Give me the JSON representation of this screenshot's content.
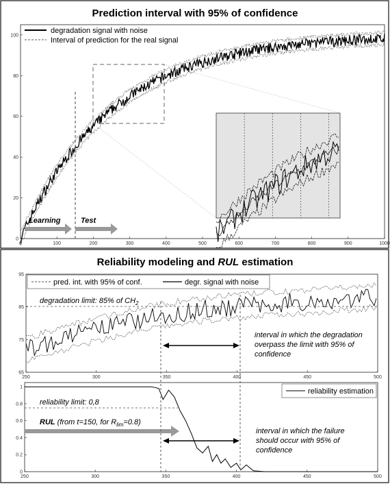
{
  "chart_data": [
    {
      "type": "line",
      "title": "Prediction interval with 95% of confidence",
      "xlim": [
        0,
        1000
      ],
      "ylim": [
        0,
        105
      ],
      "x_ticks": [
        "0",
        "100",
        "200",
        "300",
        "400",
        "500",
        "600",
        "700",
        "800",
        "900",
        "1000"
      ],
      "y_ticks": [
        "0",
        "20",
        "40",
        "60",
        "80",
        "100"
      ],
      "legend": [
        "degradation signal with noise",
        "Interval of prediction for the real signal"
      ],
      "legend_placement": "top-left",
      "series": [
        {
          "name": "degradation signal with noise",
          "model": "100*(1-exp(-t/250))",
          "noise_amplitude": 2
        },
        {
          "name": "Interval of prediction for the real signal",
          "offset": 3
        }
      ],
      "split_x": 150,
      "annotations": [
        "Learning",
        "Test"
      ],
      "zoom_box": {
        "x": [
          200,
          400
        ],
        "y": [
          60,
          90
        ]
      }
    },
    {
      "type": "line",
      "title_parts": [
        "Reliability modeling and ",
        "RUL",
        " estimation"
      ],
      "xlim": [
        250,
        500
      ],
      "ylim": [
        65,
        95
      ],
      "x_ticks": [
        "250",
        "300",
        "350",
        "400",
        "450",
        "500"
      ],
      "y_ticks": [
        "65",
        "75",
        "85",
        "95"
      ],
      "legend": [
        "pred. int. with 95% of conf.",
        "degr. signal with noise"
      ],
      "limit": {
        "value": 85,
        "label_parts": [
          "degradation limit: 85% of CH",
          "2"
        ]
      },
      "interval": {
        "x": [
          347,
          402
        ],
        "label": [
          "interval in which the degradation",
          "overpass the limit with 95% of",
          "confidence"
        ]
      }
    },
    {
      "type": "line",
      "xlim": [
        250,
        500
      ],
      "ylim": [
        0,
        1.05
      ],
      "x_ticks": [
        "250",
        "300",
        "350",
        "400",
        "450",
        "500"
      ],
      "y_ticks": [
        "0",
        "0.2",
        "0.4",
        "0.6",
        "0.8",
        "1"
      ],
      "legend": [
        "reliability estimation"
      ],
      "limit": {
        "value": 0.8,
        "label": "reliability limit: 0,8"
      },
      "rul_parts": [
        "RUL",
        " (from t=150, for R",
        "lim",
        "=0.8)"
      ],
      "interval": {
        "x": [
          347,
          402
        ],
        "label": [
          "interval in which the failure",
          "should occur with 95% of",
          "confidence"
        ]
      },
      "series": [
        {
          "name": "reliability estimation",
          "points": [
            [
              250,
              1.0
            ],
            [
              340,
              1.0
            ],
            [
              345,
              0.98
            ],
            [
              348,
              0.85
            ],
            [
              352,
              0.96
            ],
            [
              356,
              0.88
            ],
            [
              360,
              0.72
            ],
            [
              364,
              0.6
            ],
            [
              368,
              0.45
            ],
            [
              372,
              0.28
            ],
            [
              376,
              0.22
            ],
            [
              380,
              0.3
            ],
            [
              383,
              0.12
            ],
            [
              386,
              0.2
            ],
            [
              389,
              0.1
            ],
            [
              392,
              0.15
            ],
            [
              396,
              0.05
            ],
            [
              400,
              0.1
            ],
            [
              403,
              0.02
            ],
            [
              407,
              0.08
            ],
            [
              412,
              0.01
            ],
            [
              420,
              0.0
            ],
            [
              500,
              0.0
            ]
          ]
        }
      ]
    }
  ]
}
